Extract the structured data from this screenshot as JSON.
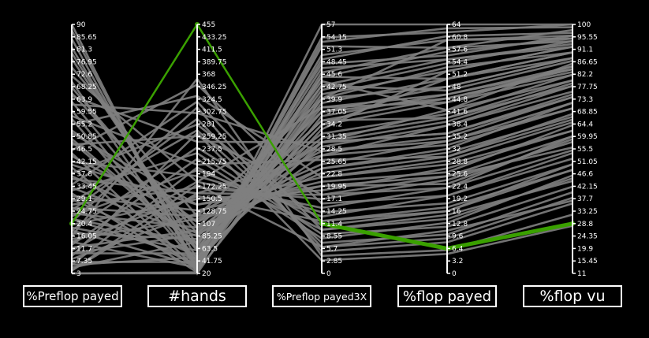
{
  "chart_data": {
    "type": "parallel_coordinates",
    "colors": {
      "background": "#000000",
      "lines": "#808080",
      "highlight": "#3aa000",
      "axis": "#ffffff"
    },
    "axes": [
      {
        "name": "%Preflop payed",
        "ticks": [
          "3",
          "7.35",
          "11.7",
          "16.05",
          "20.4",
          "24.75",
          "29.1",
          "33.45",
          "37.8",
          "42.15",
          "46.5",
          "50.85",
          "55.2",
          "59.55",
          "63.9",
          "68.25",
          "72.6",
          "76.95",
          "81.3",
          "85.65",
          "90"
        ]
      },
      {
        "name": "#hands",
        "ticks": [
          "20",
          "41.75",
          "63.5",
          "85.25",
          "107",
          "128.75",
          "150.5",
          "172.25",
          "194",
          "215.75",
          "237.5",
          "259.25",
          "281",
          "302.75",
          "324.5",
          "346.25",
          "368",
          "389.75",
          "411.5",
          "433.25",
          "455"
        ]
      },
      {
        "name": "%Preflop payed3X",
        "ticks": [
          "0",
          "2.85",
          "5.7",
          "8.55",
          "11.4",
          "14.25",
          "17.1",
          "19.95",
          "22.8",
          "25.65",
          "28.5",
          "31.35",
          "34.2",
          "37.05",
          "39.9",
          "42.75",
          "45.6",
          "48.45",
          "51.3",
          "54.15",
          "57"
        ]
      },
      {
        "name": "%flop payed",
        "ticks": [
          "0",
          "3.2",
          "6.4",
          "9.6",
          "12.8",
          "16",
          "19.2",
          "22.4",
          "25.6",
          "28.8",
          "32",
          "35.2",
          "38.4",
          "41.6",
          "44.8",
          "48",
          "51.2",
          "54.4",
          "57.6",
          "60.8",
          "64"
        ]
      },
      {
        "name": "%flop vu",
        "ticks": [
          "11",
          "15.45",
          "19.9",
          "24.35",
          "28.8",
          "33.25",
          "37.7",
          "42.15",
          "46.6",
          "51.05",
          "55.5",
          "59.95",
          "64.4",
          "68.85",
          "73.3",
          "77.75",
          "82.2",
          "86.65",
          "91.1",
          "95.55",
          "100"
        ]
      }
    ],
    "highlighted_record": [
      20.4,
      455,
      11.4,
      6.4,
      28.8
    ],
    "records": [
      [
        90,
        20,
        57,
        64,
        100
      ],
      [
        85,
        30,
        50,
        60,
        95
      ],
      [
        80,
        60,
        45,
        50,
        90
      ],
      [
        75,
        120,
        40,
        48,
        88
      ],
      [
        72,
        180,
        38,
        44,
        82
      ],
      [
        68,
        90,
        35,
        40,
        78
      ],
      [
        65,
        250,
        30,
        36,
        75
      ],
      [
        62,
        300,
        28,
        34,
        70
      ],
      [
        60,
        40,
        33,
        52,
        92
      ],
      [
        58,
        210,
        26,
        30,
        66
      ],
      [
        55,
        330,
        22,
        28,
        62
      ],
      [
        52,
        140,
        20,
        25,
        60
      ],
      [
        50,
        70,
        44,
        42,
        86
      ],
      [
        48,
        260,
        18,
        22,
        55
      ],
      [
        46,
        350,
        16,
        20,
        52
      ],
      [
        44,
        110,
        24,
        32,
        72
      ],
      [
        42,
        190,
        14,
        18,
        50
      ],
      [
        40,
        25,
        36,
        46,
        84
      ],
      [
        38,
        280,
        12,
        16,
        48
      ],
      [
        36,
        160,
        27,
        38,
        76
      ],
      [
        34,
        320,
        10,
        14,
        45
      ],
      [
        33,
        85,
        31,
        40,
        80
      ],
      [
        32,
        230,
        9,
        12,
        42
      ],
      [
        30,
        130,
        21,
        26,
        64
      ],
      [
        29,
        50,
        48,
        56,
        96
      ],
      [
        28,
        270,
        7,
        10,
        40
      ],
      [
        27,
        170,
        17,
        24,
        58
      ],
      [
        26,
        35,
        39,
        50,
        90
      ],
      [
        25,
        290,
        6,
        9,
        38
      ],
      [
        24,
        100,
        23,
        30,
        68
      ],
      [
        23,
        200,
        13,
        20,
        54
      ],
      [
        22,
        45,
        42,
        54,
        94
      ],
      [
        21,
        310,
        5,
        8,
        36
      ],
      [
        20,
        150,
        19,
        27,
        62
      ],
      [
        19,
        60,
        34,
        44,
        85
      ],
      [
        18,
        240,
        11,
        16,
        50
      ],
      [
        17,
        80,
        29,
        38,
        78
      ],
      [
        16,
        360,
        4,
        6,
        32
      ],
      [
        15,
        115,
        25,
        34,
        72
      ],
      [
        14,
        30,
        46,
        58,
        98
      ],
      [
        13,
        220,
        8,
        13,
        46
      ],
      [
        12,
        95,
        32,
        41,
        82
      ],
      [
        11,
        180,
        15,
        22,
        60
      ],
      [
        10,
        55,
        37,
        48,
        88
      ],
      [
        9,
        265,
        3,
        5,
        28
      ],
      [
        8,
        125,
        28,
        35,
        74
      ],
      [
        7,
        40,
        41,
        52,
        92
      ],
      [
        6,
        205,
        10,
        15,
        44
      ],
      [
        5,
        75,
        35,
        45,
        84
      ],
      [
        4,
        160,
        18,
        25,
        56
      ],
      [
        3,
        22,
        54,
        62,
        100
      ],
      [
        88,
        25,
        52,
        58,
        94
      ],
      [
        82,
        45,
        47,
        55,
        92
      ],
      [
        78,
        70,
        43,
        47,
        87
      ],
      [
        70,
        40,
        40,
        53,
        90
      ],
      [
        66,
        100,
        37,
        45,
        83
      ],
      [
        63,
        60,
        34,
        50,
        88
      ],
      [
        57,
        35,
        45,
        57,
        95
      ],
      [
        53,
        110,
        30,
        39,
        79
      ],
      [
        49,
        65,
        38,
        46,
        85
      ],
      [
        45,
        28,
        49,
        61,
        97
      ],
      [
        41,
        140,
        22,
        29,
        65
      ],
      [
        37,
        90,
        30,
        36,
        74
      ],
      [
        31,
        22,
        53,
        63,
        99
      ],
      [
        26,
        120,
        20,
        23,
        59
      ],
      [
        22,
        75,
        27,
        33,
        70
      ],
      [
        18,
        33,
        43,
        55,
        93
      ],
      [
        14,
        155,
        12,
        17,
        48
      ],
      [
        10,
        88,
        24,
        31,
        67
      ],
      [
        6,
        48,
        30,
        42,
        80
      ],
      [
        4,
        175,
        6,
        11,
        37
      ],
      [
        3,
        20,
        40,
        60,
        96
      ]
    ]
  }
}
